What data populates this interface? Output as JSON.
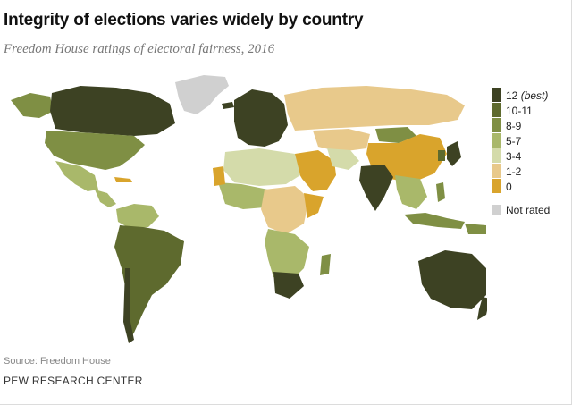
{
  "header": {
    "title": "Integrity of elections varies widely by country",
    "subtitle": "Freedom House ratings of electoral fairness, 2016"
  },
  "legend": {
    "items": [
      {
        "label": "12",
        "suffix": "(best)",
        "color": "#3d4223"
      },
      {
        "label": "10-11",
        "suffix": "",
        "color": "#5e6a2e"
      },
      {
        "label": "8-9",
        "suffix": "",
        "color": "#7f8f44"
      },
      {
        "label": "5-7",
        "suffix": "",
        "color": "#a9b86a"
      },
      {
        "label": "3-4",
        "suffix": "",
        "color": "#d4dbaa"
      },
      {
        "label": "1-2",
        "suffix": "",
        "color": "#e8c98b"
      },
      {
        "label": "0",
        "suffix": "",
        "color": "#d9a42c"
      }
    ],
    "not_rated": {
      "label": "Not rated",
      "color": "#d0d0d0"
    }
  },
  "footer": {
    "source": "Source: Freedom House",
    "brand": "PEW RESEARCH CENTER"
  }
}
